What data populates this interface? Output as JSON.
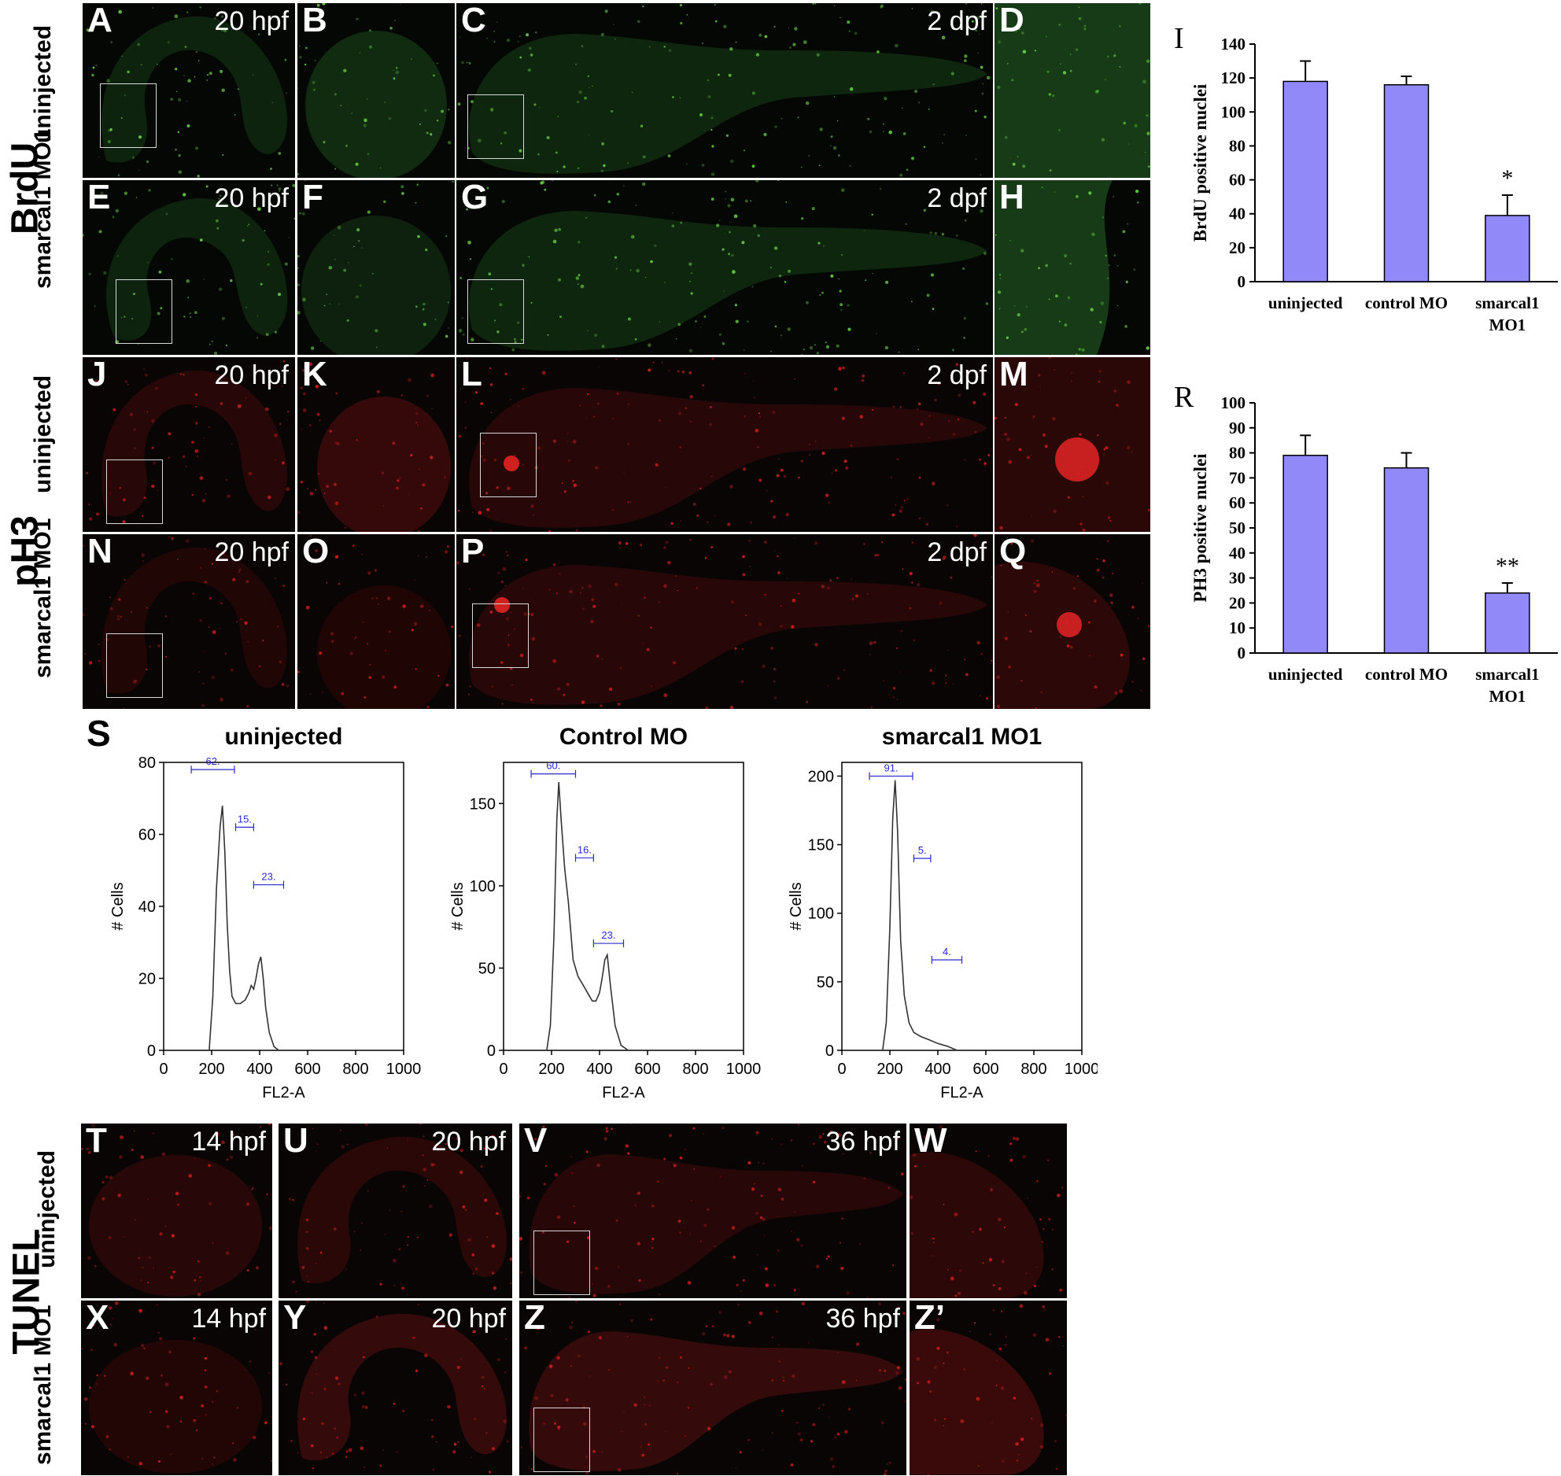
{
  "groups": {
    "brdu": "BrdU",
    "ph3": "pH3",
    "tunel": "TUNEL"
  },
  "rows": {
    "uninjected": "uninjected",
    "smarcal": "smarcal1 MO1"
  },
  "panels": {
    "A": {
      "label": "A",
      "time": "20 hpf"
    },
    "B": {
      "label": "B"
    },
    "C": {
      "label": "C",
      "time": "2 dpf"
    },
    "D": {
      "label": "D"
    },
    "E": {
      "label": "E",
      "time": "20 hpf"
    },
    "F": {
      "label": "F"
    },
    "G": {
      "label": "G",
      "time": "2 dpf"
    },
    "H": {
      "label": "H"
    },
    "J": {
      "label": "J",
      "time": "20 hpf"
    },
    "K": {
      "label": "K"
    },
    "L": {
      "label": "L",
      "time": "2 dpf"
    },
    "M": {
      "label": "M"
    },
    "N": {
      "label": "N",
      "time": "20 hpf"
    },
    "O": {
      "label": "O"
    },
    "P": {
      "label": "P",
      "time": "2 dpf"
    },
    "Q": {
      "label": "Q"
    },
    "T": {
      "label": "T",
      "time": "14 hpf"
    },
    "U": {
      "label": "U",
      "time": "20 hpf"
    },
    "V": {
      "label": "V",
      "time": "36 hpf"
    },
    "W": {
      "label": "W"
    },
    "X": {
      "label": "X",
      "time": "14 hpf"
    },
    "Y": {
      "label": "Y",
      "time": "20 hpf"
    },
    "Z": {
      "label": "Z",
      "time": "36 hpf"
    },
    "Z2": {
      "label": "Z’"
    }
  },
  "colors": {
    "bar": "#9189f7",
    "green_signal": "#6fe04a",
    "red_signal": "#e02020",
    "fc_bracket": "#2a2ad0"
  },
  "chart_data": [
    {
      "id": "I",
      "type": "bar",
      "label": "I",
      "categories": [
        "uninjected",
        "control MO",
        "smarcal1\nMO1"
      ],
      "values": [
        118,
        116,
        39
      ],
      "errors": [
        12,
        5,
        12
      ],
      "ylabel": "BrdU positive nuclei",
      "ylim": [
        0,
        140
      ],
      "yticks": [
        0,
        20,
        40,
        60,
        80,
        100,
        120,
        140
      ],
      "annotations": [
        "",
        "",
        "*"
      ]
    },
    {
      "id": "R",
      "type": "bar",
      "label": "R",
      "categories": [
        "uninjected",
        "control MO",
        "smarcal1\nMO1"
      ],
      "values": [
        79,
        74,
        24
      ],
      "errors": [
        8,
        6,
        4
      ],
      "ylabel": "PH3 positive nuclei",
      "ylim": [
        0,
        100
      ],
      "yticks": [
        0,
        10,
        20,
        30,
        40,
        50,
        60,
        70,
        80,
        90,
        100
      ],
      "annotations": [
        "",
        "",
        "**"
      ]
    },
    {
      "id": "S1",
      "type": "line",
      "title": "uninjected",
      "xlabel": "FL2-A",
      "ylabel": "# Cells",
      "xlim": [
        0,
        1000
      ],
      "ylim": [
        0,
        80
      ],
      "xticks": [
        0,
        200,
        400,
        600,
        800,
        1000
      ],
      "yticks": [
        0,
        20,
        40,
        60,
        80
      ],
      "x": [
        190,
        205,
        220,
        235,
        245,
        255,
        265,
        275,
        285,
        300,
        320,
        340,
        355,
        365,
        375,
        385,
        395,
        405,
        415,
        425,
        440,
        460,
        480
      ],
      "y": [
        0,
        15,
        45,
        62,
        68,
        55,
        35,
        22,
        15,
        13,
        13,
        14,
        16,
        18,
        17,
        20,
        24,
        26,
        20,
        12,
        5,
        1,
        0
      ],
      "gates": [
        {
          "label": "62.",
          "x1": 115,
          "x2": 295,
          "y": 78
        },
        {
          "label": "15.",
          "x1": 300,
          "x2": 375,
          "y": 62
        },
        {
          "label": "23.",
          "x1": 375,
          "x2": 500,
          "y": 46
        }
      ]
    },
    {
      "id": "S2",
      "type": "line",
      "title": "Control MO",
      "xlabel": "FL2-A",
      "ylabel": "# Cells",
      "xlim": [
        0,
        1000
      ],
      "ylim": [
        0,
        175
      ],
      "xticks": [
        0,
        200,
        400,
        600,
        800,
        1000
      ],
      "yticks": [
        0,
        50,
        100,
        150
      ],
      "x": [
        180,
        195,
        210,
        222,
        230,
        240,
        255,
        270,
        290,
        310,
        330,
        350,
        370,
        385,
        400,
        412,
        422,
        432,
        445,
        465,
        490,
        520
      ],
      "y": [
        0,
        15,
        70,
        140,
        163,
        140,
        110,
        90,
        55,
        45,
        40,
        35,
        30,
        30,
        35,
        45,
        55,
        58,
        40,
        15,
        3,
        0
      ],
      "gates": [
        {
          "label": "60.",
          "x1": 115,
          "x2": 300,
          "y": 168
        },
        {
          "label": "16.",
          "x1": 300,
          "x2": 375,
          "y": 117
        },
        {
          "label": "23.",
          "x1": 375,
          "x2": 500,
          "y": 65
        }
      ]
    },
    {
      "id": "S3",
      "type": "line",
      "title": "smarcal1 MO1",
      "xlabel": "FL2-A",
      "ylabel": "# Cells",
      "xlim": [
        0,
        1000
      ],
      "ylim": [
        0,
        210
      ],
      "xticks": [
        0,
        200,
        400,
        600,
        800,
        1000
      ],
      "yticks": [
        0,
        50,
        100,
        150,
        200
      ],
      "x": [
        170,
        185,
        200,
        212,
        222,
        232,
        245,
        260,
        280,
        300,
        330,
        360,
        400,
        440,
        480
      ],
      "y": [
        0,
        20,
        90,
        170,
        197,
        160,
        80,
        40,
        20,
        13,
        10,
        8,
        5,
        3,
        0
      ],
      "gates": [
        {
          "label": "91.",
          "x1": 115,
          "x2": 295,
          "y": 200
        },
        {
          "label": "5.",
          "x1": 300,
          "x2": 370,
          "y": 140
        },
        {
          "label": "4.",
          "x1": 375,
          "x2": 500,
          "y": 66
        }
      ]
    }
  ],
  "fc_label": "S"
}
